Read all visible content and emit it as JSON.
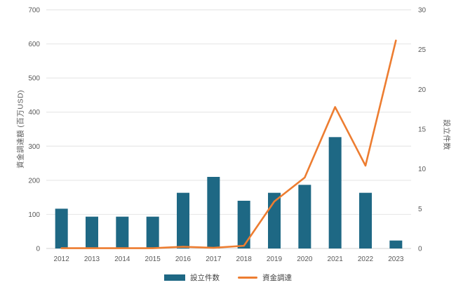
{
  "chart_data": {
    "type": "combo",
    "title": "",
    "categories": [
      "2012",
      "2013",
      "2014",
      "2015",
      "2016",
      "2017",
      "2018",
      "2019",
      "2020",
      "2021",
      "2022",
      "2023"
    ],
    "series": [
      {
        "name": "設立件数",
        "type": "bar",
        "axis": "right",
        "color": "#1e6884",
        "values": [
          5,
          4,
          4,
          4,
          7,
          9,
          6,
          7,
          8,
          14,
          7,
          1
        ]
      },
      {
        "name": "資金調達",
        "type": "line",
        "axis": "left",
        "color": "#ED7D31",
        "values": [
          1,
          1,
          1,
          1,
          5,
          2,
          8,
          138,
          208,
          415,
          243,
          610
        ]
      }
    ],
    "left_axis": {
      "label": "資金調達額 (百万USD)",
      "min": 0,
      "max": 700,
      "step": 100
    },
    "right_axis": {
      "label": "設立件数",
      "min": 0,
      "max": 30,
      "step": 5
    },
    "grid": true,
    "legend_position": "bottom"
  },
  "colors": {
    "gridline": "#e8e8e8",
    "zero_line": "#d9d9d9",
    "tick_text": "#595959",
    "background": "#ffffff"
  }
}
